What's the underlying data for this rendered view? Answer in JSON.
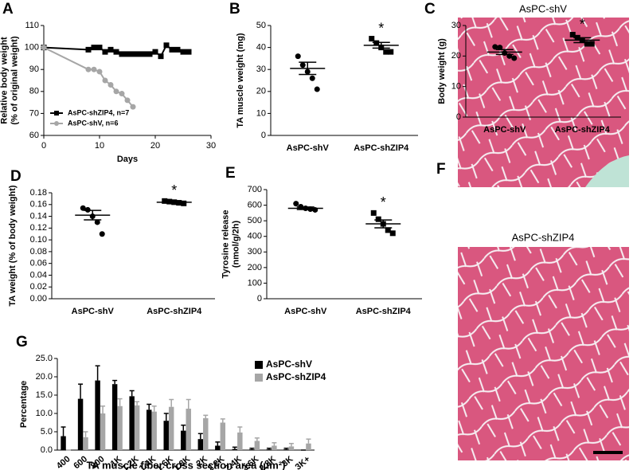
{
  "chart_data": [
    {
      "type": "line",
      "panel_label": "A",
      "x_label": "Days",
      "y_label": [
        "Relative body weight",
        "(% of original weight)"
      ],
      "xlim": [
        0,
        30
      ],
      "xticks": [
        0,
        10,
        20,
        30
      ],
      "ylim": [
        60,
        110
      ],
      "yticks": [
        60,
        70,
        80,
        90,
        100,
        110
      ],
      "legend_position": "lower left",
      "series": [
        {
          "name": "AsPC-shZIP4, n=7",
          "color": "#000000",
          "marker": "square",
          "x": [
            0,
            8,
            9,
            10,
            11,
            12,
            13,
            14,
            15,
            16,
            17,
            18,
            19,
            20,
            21,
            22,
            23,
            24,
            25,
            26
          ],
          "values": [
            100,
            99,
            100,
            100,
            98,
            99,
            98,
            97,
            97,
            97,
            97,
            97,
            97,
            98,
            96,
            101,
            99,
            99,
            98,
            98
          ]
        },
        {
          "name": "AsPC-shV, n=6",
          "color": "#a6a6a6",
          "marker": "circle",
          "x": [
            0,
            8,
            9,
            10,
            11,
            12,
            13,
            14,
            15,
            16
          ],
          "values": [
            100,
            90,
            90,
            89,
            85,
            83,
            80,
            79,
            76,
            73
          ]
        }
      ]
    },
    {
      "type": "strip",
      "panel_label": "B",
      "y_label": [
        "TA muscle weight (mg)"
      ],
      "categories": [
        "AsPC-shV",
        "AsPC-shZIP4"
      ],
      "ylim": [
        0,
        50
      ],
      "yticks": [
        0,
        10,
        20,
        30,
        40,
        50
      ],
      "color": "#000000",
      "markers": [
        "circle",
        "square"
      ],
      "points": [
        [
          36,
          32,
          29,
          26,
          21
        ],
        [
          44,
          42,
          40,
          38,
          38
        ]
      ],
      "means": [
        30.5,
        41
      ],
      "sems": [
        2.8,
        1.3
      ],
      "significance": [
        null,
        "*"
      ]
    },
    {
      "type": "strip",
      "panel_label": "C",
      "y_label": [
        "Body weight (g)"
      ],
      "categories": [
        "AsPC-shV",
        "AsPC-shZIP4"
      ],
      "ylim": [
        0,
        30
      ],
      "yticks": [
        0,
        10,
        20,
        30
      ],
      "color": "#000000",
      "markers": [
        "circle",
        "square"
      ],
      "points": [
        [
          23,
          22.8,
          21,
          20,
          19.3
        ],
        [
          27,
          26,
          25.2,
          24,
          24
        ]
      ],
      "means": [
        21.3,
        25.2
      ],
      "sems": [
        0.8,
        0.8
      ],
      "significance": [
        null,
        "*"
      ]
    },
    {
      "type": "strip",
      "panel_label": "D",
      "y_label": [
        "TA weight (% of body weight)"
      ],
      "categories": [
        "AsPC-shV",
        "AsPC-shZIP4"
      ],
      "ylim": [
        0,
        0.18
      ],
      "yticks": [
        {
          "value": 0,
          "label": "0.00"
        },
        0.02,
        0.04,
        0.06,
        0.08,
        {
          "value": 0.1,
          "label": "0.10"
        },
        0.12,
        0.14,
        0.16,
        0.18
      ],
      "color": "#000000",
      "markers": [
        "circle",
        "square"
      ],
      "points": [
        [
          0.154,
          0.151,
          0.14,
          0.13,
          0.11
        ],
        [
          0.166,
          0.165,
          0.164,
          0.163,
          0.162
        ]
      ],
      "means": [
        0.142,
        0.164
      ],
      "sems": [
        0.008,
        0.001
      ],
      "significance": [
        null,
        "*"
      ]
    },
    {
      "type": "strip",
      "panel_label": "E",
      "y_label": [
        "Tyrosine release",
        "(nmol/g/2h)"
      ],
      "categories": [
        "AsPC-shV",
        "AsPC-shZIP4"
      ],
      "ylim": [
        0,
        700
      ],
      "yticks": [
        0,
        100,
        200,
        300,
        400,
        500,
        600,
        700
      ],
      "color": "#000000",
      "markers": [
        "circle",
        "square"
      ],
      "points": [
        [
          610,
          590,
          580,
          575,
          570
        ],
        [
          550,
          510,
          480,
          440,
          420
        ]
      ],
      "means": [
        580,
        480
      ],
      "sems": [
        8,
        25
      ],
      "significance": [
        null,
        "*"
      ]
    },
    {
      "type": "bar",
      "panel_label": "G",
      "y_label": [
        "Percentage"
      ],
      "x_label": "TA muscle fiber cross section area (μm²)",
      "categories": [
        "400",
        "600",
        "800",
        "1K",
        "1.2K",
        "1.4K",
        "1.6K",
        "1.8K",
        "2K",
        "2.2K",
        "2.4K",
        "2.6K",
        "2.8K",
        "3K",
        "3K+"
      ],
      "ylim": [
        0,
        25
      ],
      "yticks": [
        {
          "value": 0,
          "label": "0.0"
        },
        {
          "value": 5,
          "label": "5.0"
        },
        {
          "value": 10,
          "label": "10.0"
        },
        {
          "value": 15,
          "label": "15.0"
        },
        {
          "value": 20,
          "label": "20.0"
        },
        {
          "value": 25,
          "label": "25.0"
        }
      ],
      "legend_position": "upper right",
      "series": [
        {
          "name": "AsPC-shV",
          "color": "#000000",
          "values": [
            3.8,
            14,
            19,
            18,
            14.7,
            11,
            8,
            5.3,
            3,
            1.2,
            0.3,
            0.2,
            0.2,
            0.2,
            0
          ],
          "errors": [
            2.5,
            4,
            4,
            1,
            1.5,
            1.5,
            2,
            1.5,
            1.5,
            1,
            0.5,
            0.3,
            0.3,
            0.3,
            0
          ]
        },
        {
          "name": "AsPC-shZIP4",
          "color": "#a6a6a6",
          "values": [
            0,
            3.5,
            10,
            12,
            12.2,
            10.5,
            11.8,
            11.3,
            8.7,
            7.5,
            4.8,
            2.5,
            1.2,
            1,
            1.8
          ],
          "errors": [
            0,
            1.5,
            2,
            2,
            1,
            1.5,
            2,
            2.5,
            0.8,
            1,
            1.5,
            0.8,
            0.8,
            0.8,
            1.2
          ]
        }
      ]
    }
  ],
  "panel_f": {
    "panel_label": "F",
    "titles": [
      "AsPC-shV",
      "AsPC-shZIP4"
    ]
  }
}
